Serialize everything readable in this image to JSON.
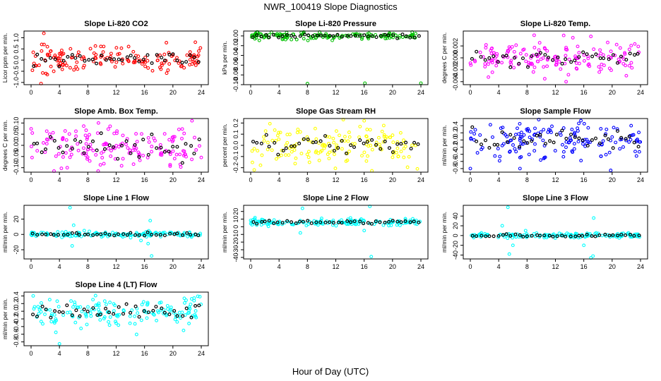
{
  "figure": {
    "title": "NWR_100419  Slope Diagnostics",
    "xlabel": "Hour of Day (UTC)"
  },
  "chart_data": [
    {
      "type": "scatter",
      "title": "Slope Li-820 CO2",
      "ylabel": "Licor ppm per min.",
      "xlim": [
        0,
        24
      ],
      "ylim": [
        -1.1,
        1.3
      ],
      "xticks": [
        0,
        4,
        8,
        12,
        16,
        20,
        24
      ],
      "yticks": [
        -1.0,
        -0.5,
        0.0,
        0.5,
        1.0
      ],
      "ytick_labels": [
        "-1.0",
        "-0.5",
        "0.0",
        "0.5",
        "1.0"
      ],
      "color": "#ff0000",
      "center": 0.05,
      "spread": 0.28,
      "outliers": [
        [
          1.8,
          1.2
        ],
        [
          1.5,
          0.7
        ],
        [
          2.3,
          0.6
        ],
        [
          2.1,
          -0.6
        ],
        [
          1.4,
          -1.05
        ],
        [
          3.2,
          -0.5
        ]
      ]
    },
    {
      "type": "scatter",
      "title": "Slope Li-820 Pressure",
      "ylabel": "kPa per min.",
      "xlim": [
        0,
        24
      ],
      "ylim": [
        -0.1,
        0.01
      ],
      "xticks": [
        0,
        4,
        8,
        12,
        16,
        20,
        24
      ],
      "yticks": [
        -0.1,
        -0.08,
        -0.06,
        -0.04,
        -0.02,
        0.0
      ],
      "ytick_labels": [
        "-0.10",
        "-0.08",
        "-0.06",
        "-0.04",
        "-0.02",
        "0.00"
      ],
      "color": "#00c000",
      "center": 0.0,
      "spread": 0.004,
      "outliers": [
        [
          8.0,
          -0.098
        ],
        [
          16.1,
          -0.097
        ],
        [
          24.0,
          -0.097
        ]
      ]
    },
    {
      "type": "scatter",
      "title": "Slope Li-820 Temp.",
      "ylabel": "degrees C per min.",
      "xlim": [
        0,
        24
      ],
      "ylim": [
        -0.0045,
        0.0045
      ],
      "xticks": [
        0,
        4,
        8,
        12,
        16,
        20,
        24
      ],
      "yticks": [
        -0.004,
        -0.002,
        0.0,
        0.002
      ],
      "ytick_labels": [
        "-0.004",
        "-0.002",
        "0.000",
        "0.002"
      ],
      "color": "#ff00ff",
      "center": 0.0,
      "spread": 0.0013,
      "outliers": [
        [
          9.0,
          0.0038
        ],
        [
          17.0,
          0.0036
        ],
        [
          13.5,
          -0.004
        ],
        [
          10.5,
          -0.0035
        ],
        [
          22.0,
          -0.003
        ]
      ]
    },
    {
      "type": "scatter",
      "title": "Slope Amb. Box Temp.",
      "ylabel": "degrees C per min.",
      "xlim": [
        0,
        24
      ],
      "ylim": [
        -0.12,
        0.12
      ],
      "xticks": [
        0,
        4,
        8,
        12,
        16,
        20,
        24
      ],
      "yticks": [
        -0.1,
        -0.05,
        0.0,
        0.05,
        0.1
      ],
      "ytick_labels": [
        "-0.10",
        "-0.05",
        "0.00",
        "0.05",
        "0.10"
      ],
      "color": "#ff00ff",
      "center": 0.0,
      "spread": 0.045,
      "outliers": [
        [
          22.7,
          0.11
        ],
        [
          9.5,
          0.1
        ],
        [
          5.1,
          -0.1
        ]
      ]
    },
    {
      "type": "scatter",
      "title": "Slope Gas Stream RH",
      "ylabel": "percent per min.",
      "xlim": [
        0,
        24
      ],
      "ylim": [
        -0.24,
        0.24
      ],
      "xticks": [
        0,
        4,
        8,
        12,
        16,
        20,
        24
      ],
      "yticks": [
        -0.2,
        -0.1,
        0.0,
        0.1,
        0.2
      ],
      "ytick_labels": [
        "-0.2",
        "-0.1",
        "0.0",
        "0.1",
        "0.2"
      ],
      "color": "#ffff00",
      "center": 0.0,
      "spread": 0.09,
      "outliers": [
        [
          0.5,
          -0.22
        ],
        [
          23.5,
          -0.21
        ],
        [
          16.0,
          0.22
        ]
      ]
    },
    {
      "type": "scatter",
      "title": "Slope Sample Flow",
      "ylabel": "ml/min per min.",
      "xlim": [
        0,
        24
      ],
      "ylim": [
        -0.9,
        0.6
      ],
      "xticks": [
        0,
        4,
        8,
        12,
        16,
        20,
        24
      ],
      "yticks": [
        -0.8,
        -0.6,
        -0.4,
        -0.2,
        0.0,
        0.2,
        0.4
      ],
      "ytick_labels": [
        "-0.8",
        "-0.6",
        "-0.4",
        "-0.2",
        "0.0",
        "0.2",
        "0.4"
      ],
      "color": "#0000ff",
      "center": 0.0,
      "spread": 0.25,
      "outliers": [
        [
          0.0,
          -0.8
        ],
        [
          19.8,
          -0.85
        ],
        [
          7.0,
          -0.8
        ]
      ]
    },
    {
      "type": "scatter",
      "title": "Slope Line 1 Flow",
      "ylabel": "ml/min per min.",
      "xlim": [
        0,
        24
      ],
      "ylim": [
        -32,
        38
      ],
      "xticks": [
        0,
        4,
        8,
        12,
        16,
        20,
        24
      ],
      "yticks": [
        -20,
        0,
        20
      ],
      "ytick_labels": [
        "-20",
        "0",
        "20"
      ],
      "color": "#00ffff",
      "center": 0.0,
      "spread": 1.8,
      "outliers": [
        [
          5.5,
          35
        ],
        [
          5.8,
          -15
        ],
        [
          6.0,
          12
        ],
        [
          16.5,
          -12
        ],
        [
          17.0,
          -28
        ],
        [
          16.8,
          18
        ],
        [
          7.5,
          5
        ],
        [
          15.5,
          -8
        ]
      ]
    },
    {
      "type": "scatter",
      "title": "Slope Line 2 Flow",
      "ylabel": "ml/min per min.",
      "xlim": [
        0,
        24
      ],
      "ylim": [
        -42,
        28
      ],
      "xticks": [
        0,
        4,
        8,
        12,
        16,
        20,
        24
      ],
      "yticks": [
        -40,
        -30,
        -20,
        -10,
        0,
        10,
        20
      ],
      "ytick_labels": [
        "-40",
        "-30",
        "-20",
        "-10",
        "0",
        "10",
        "20"
      ],
      "color": "#00ffff",
      "center": 6.0,
      "spread": 2.2,
      "outliers": [
        [
          7.3,
          24
        ],
        [
          16.8,
          27
        ],
        [
          17.0,
          -39
        ],
        [
          7.0,
          -8
        ],
        [
          16.0,
          -5
        ]
      ]
    },
    {
      "type": "scatter",
      "title": "Slope Line 3 Flow",
      "ylabel": "ml/min per min.",
      "xlim": [
        0,
        24
      ],
      "ylim": [
        -48,
        62
      ],
      "xticks": [
        0,
        4,
        8,
        12,
        16,
        20,
        24
      ],
      "yticks": [
        -40,
        -20,
        0,
        20,
        40
      ],
      "ytick_labels": [
        "-40",
        "-20",
        "0",
        "20",
        "40"
      ],
      "color": "#00ffff",
      "center": 0.0,
      "spread": 2.5,
      "outliers": [
        [
          5.3,
          58
        ],
        [
          5.5,
          -38
        ],
        [
          17.0,
          -46
        ],
        [
          17.3,
          -42
        ],
        [
          17.4,
          36
        ],
        [
          4.5,
          20
        ],
        [
          6.0,
          -20
        ],
        [
          16.0,
          -20
        ],
        [
          7.8,
          10
        ]
      ]
    },
    {
      "type": "scatter",
      "title": "Slope Line 4 (LT) Flow",
      "ylabel": "ml/min per min.",
      "xlim": [
        0,
        24
      ],
      "ylim": [
        -0.9,
        0.5
      ],
      "xticks": [
        0,
        4,
        8,
        12,
        16,
        20,
        24
      ],
      "yticks": [
        -0.8,
        -0.6,
        -0.4,
        -0.2,
        0.0,
        0.2,
        0.4
      ],
      "ytick_labels": [
        "-0.8",
        "-0.6",
        "-0.4",
        "-0.2",
        "0.0",
        "0.2",
        "0.4"
      ],
      "color": "#00ffff",
      "center": 0.0,
      "spread": 0.18,
      "outliers": [
        [
          4.0,
          -0.85
        ],
        [
          3.5,
          -0.55
        ],
        [
          0.3,
          0.4
        ],
        [
          23.8,
          0.38
        ],
        [
          21.5,
          -0.5
        ]
      ]
    }
  ]
}
